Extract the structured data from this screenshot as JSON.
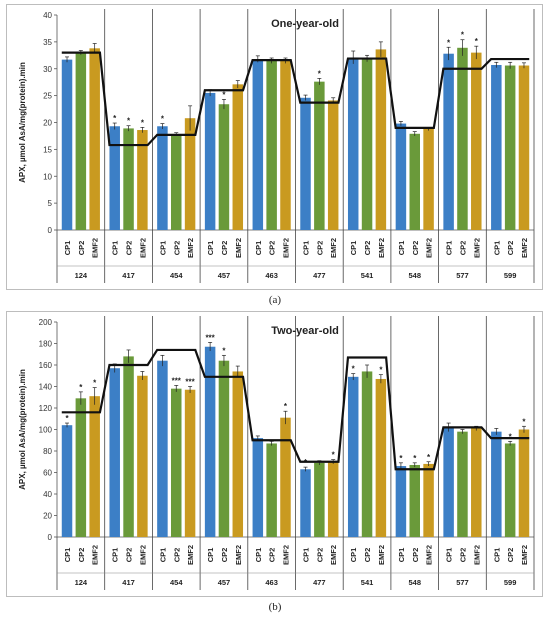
{
  "captions": [
    "(a)",
    "(b)"
  ],
  "chart_data": [
    {
      "type": "bar",
      "title": "One-year-old",
      "ylabel": "APX, µmol AsA/mg(protein).min",
      "ylim": [
        0,
        40
      ],
      "yticks": [
        0,
        5,
        10,
        15,
        20,
        25,
        30,
        35,
        40
      ],
      "groups": [
        "124",
        "417",
        "454",
        "457",
        "463",
        "477",
        "541",
        "548",
        "577",
        "599"
      ],
      "bar_labels": [
        "CP1",
        "CP2",
        "EMF2"
      ],
      "colors": [
        "#3c7fc6",
        "#6a9a3a",
        "#c99a20"
      ],
      "values": [
        [
          31.7,
          33.0,
          33.8
        ],
        [
          19.3,
          18.9,
          18.6
        ],
        [
          19.3,
          17.8,
          20.8
        ],
        [
          25.5,
          23.4,
          27.1
        ],
        [
          31.8,
          31.5,
          31.5
        ],
        [
          24.6,
          27.6,
          24.1
        ],
        [
          32.1,
          31.9,
          33.6
        ],
        [
          19.8,
          17.9,
          18.8
        ],
        [
          32.8,
          33.9,
          33.0
        ],
        [
          30.7,
          30.6,
          30.6
        ]
      ],
      "errors": [
        [
          0.5,
          0.4,
          0.9
        ],
        [
          0.6,
          0.5,
          0.5
        ],
        [
          0.5,
          0.3,
          2.3
        ],
        [
          0.6,
          0.9,
          0.7
        ],
        [
          0.6,
          0.5,
          0.5
        ],
        [
          0.5,
          0.6,
          0.5
        ],
        [
          1.2,
          0.6,
          1.4
        ],
        [
          0.4,
          0.4,
          0.3
        ],
        [
          1.2,
          1.5,
          1.2
        ],
        [
          0.5,
          0.6,
          0.5
        ]
      ],
      "stars": [
        [
          "",
          "",
          ""
        ],
        [
          "*",
          "*",
          "*"
        ],
        [
          "*",
          "",
          ""
        ],
        [
          "",
          "*",
          ""
        ],
        [
          "",
          "",
          ""
        ],
        [
          "",
          "*",
          ""
        ],
        [
          "",
          "",
          ""
        ],
        [
          "",
          "",
          ""
        ],
        [
          "*",
          "*",
          "*"
        ],
        [
          "",
          "",
          ""
        ]
      ],
      "line": [
        33.0,
        15.8,
        17.7,
        26.0,
        31.6,
        23.7,
        31.9,
        19.0,
        30.0,
        31.8
      ]
    },
    {
      "type": "bar",
      "title": "Two-year-old",
      "ylabel": "APX, µmol AsA/mg(protein).min",
      "ylim": [
        0,
        200
      ],
      "yticks": [
        0,
        20,
        40,
        60,
        80,
        100,
        120,
        140,
        160,
        180,
        200
      ],
      "groups": [
        "124",
        "417",
        "454",
        "457",
        "463",
        "477",
        "541",
        "548",
        "577",
        "599"
      ],
      "bar_labels": [
        "CP1",
        "CP2",
        "EMF2"
      ],
      "colors": [
        "#3c7fc6",
        "#6a9a3a",
        "#c99a20"
      ],
      "values": [
        [
          104,
          129,
          131
        ],
        [
          157,
          168,
          150
        ],
        [
          164,
          138,
          137
        ],
        [
          177,
          164,
          154
        ],
        [
          92,
          87,
          111
        ],
        [
          63,
          69,
          70
        ],
        [
          149,
          154,
          147
        ],
        [
          66,
          67,
          68
        ],
        [
          102,
          98,
          101
        ],
        [
          98,
          87,
          100
        ]
      ],
      "errors": [
        [
          2,
          6,
          8
        ],
        [
          4,
          6,
          4
        ],
        [
          5,
          3,
          3
        ],
        [
          4,
          5,
          5
        ],
        [
          2,
          2,
          6
        ],
        [
          2,
          2,
          2
        ],
        [
          3,
          6,
          4
        ],
        [
          3,
          2,
          2
        ],
        [
          4,
          2,
          2
        ],
        [
          3,
          2,
          3
        ]
      ],
      "stars": [
        [
          "*",
          "*",
          "*"
        ],
        [
          "",
          "",
          ""
        ],
        [
          "",
          "***",
          "***"
        ],
        [
          "***",
          "*",
          ""
        ],
        [
          "",
          "",
          "*"
        ],
        [
          "*",
          "",
          "*"
        ],
        [
          "*",
          "",
          "*"
        ],
        [
          "*",
          "*",
          "*"
        ],
        [
          "",
          "",
          ""
        ],
        [
          "",
          "*",
          "*"
        ]
      ],
      "line": [
        116,
        160,
        174,
        149,
        90,
        70,
        167,
        63,
        102,
        92
      ]
    }
  ]
}
